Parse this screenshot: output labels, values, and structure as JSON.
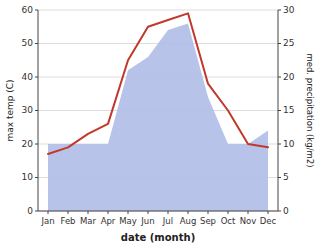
{
  "chart_data": {
    "type": "line",
    "categories": [
      "Jan",
      "Feb",
      "Mar",
      "Apr",
      "May",
      "Jun",
      "Jul",
      "Aug",
      "Sep",
      "Oct",
      "Nov",
      "Dec"
    ],
    "xlabel": "date (month)",
    "ylabel": "max temp (C)",
    "y2label": "med. precipitation (kg/m2)",
    "ylim": [
      0,
      60
    ],
    "yticks": [
      0,
      10,
      20,
      30,
      40,
      50,
      60
    ],
    "y2lim": [
      0,
      30
    ],
    "y2ticks": [
      0,
      5,
      10,
      15,
      20,
      25,
      30
    ],
    "grid": true,
    "series": [
      {
        "type": "area",
        "axis": "y2",
        "color": "#b0bce8",
        "values": [
          10,
          10,
          10,
          10,
          21,
          23,
          27,
          28,
          17,
          10,
          10,
          12
        ]
      },
      {
        "type": "line",
        "color": "#c0392b",
        "values": [
          17,
          19,
          23,
          26,
          45,
          55,
          57,
          59,
          38,
          30,
          20,
          19
        ]
      }
    ]
  }
}
